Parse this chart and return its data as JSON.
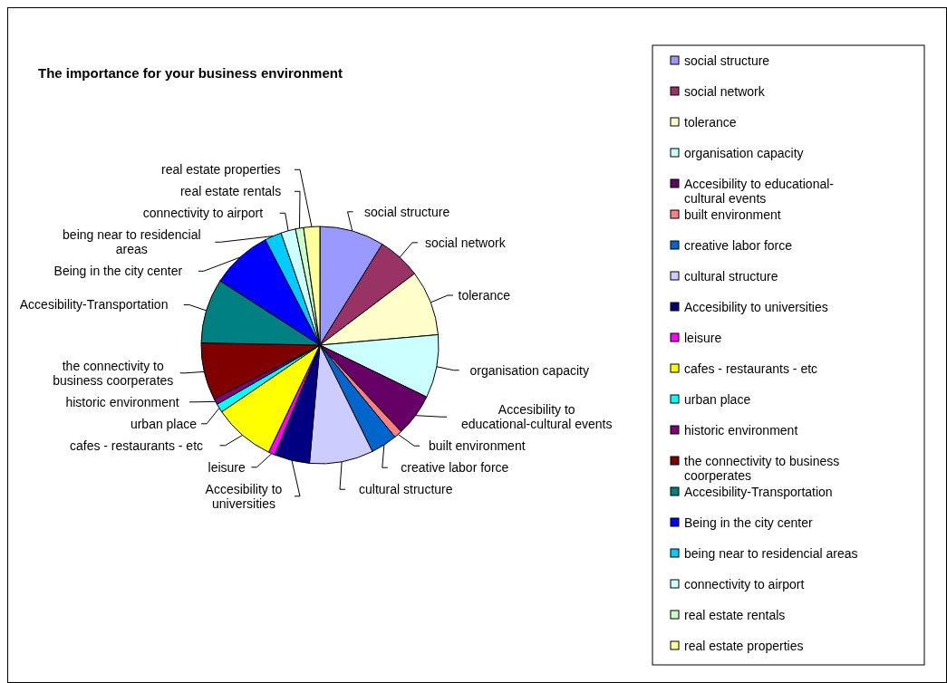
{
  "chart_data": {
    "type": "pie",
    "title": "The importance for your business environment",
    "categories": [
      "social structure",
      "social network",
      "tolerance",
      "organisation capacity",
      "Accesibility to educational-cultural events",
      "built environment",
      "creative labor force",
      "cultural structure",
      "Accesibility to universities",
      "leisure",
      "cafes - restaurants - etc",
      "urban place",
      "historic environment",
      "the connectivity to business coorperates",
      "Accesibility-Transportation",
      "Being in the city center",
      "being near to residencial areas",
      "connectivity to airport",
      "real estate rentals",
      "real estate properties"
    ],
    "values": [
      8.8,
      5.9,
      8.9,
      8.6,
      5.8,
      1.1,
      3.6,
      8.7,
      4.8,
      0.9,
      8.4,
      1.2,
      0.8,
      7.8,
      8.8,
      8.3,
      2.3,
      2.0,
      1.1,
      2.2
    ],
    "colors": [
      "#9999ff",
      "#993366",
      "#ffffcc",
      "#ccffff",
      "#660066",
      "#ff8080",
      "#0066cc",
      "#ccccff",
      "#000080",
      "#ff00ff",
      "#ffff00",
      "#00ffff",
      "#800080",
      "#800000",
      "#008080",
      "#0000ff",
      "#00ccff",
      "#ccffff",
      "#ccffcc",
      "#ffff99"
    ],
    "legend": "right"
  }
}
